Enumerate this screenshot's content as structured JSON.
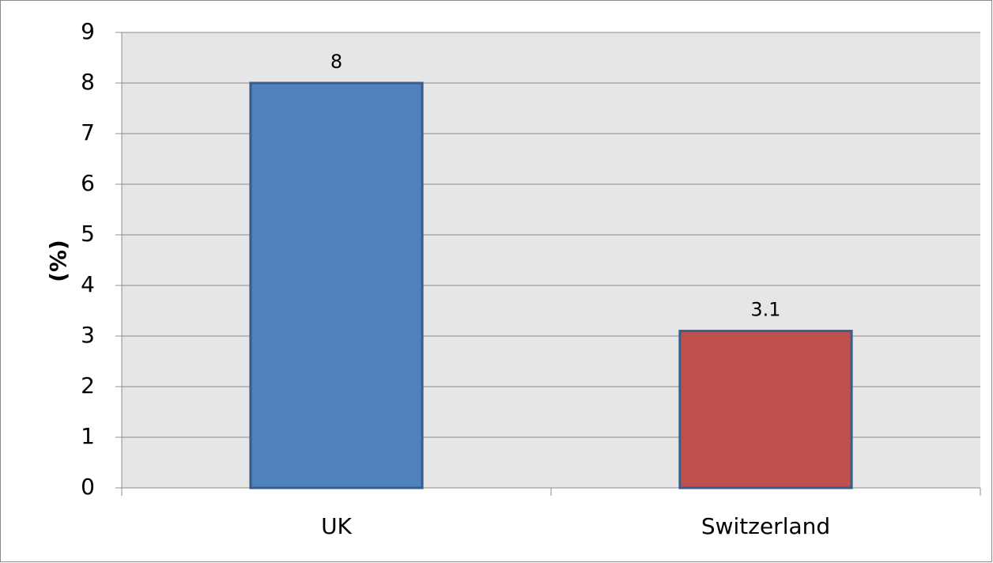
{
  "chart_data": {
    "type": "bar",
    "y_label": "(%)",
    "categories": [
      "UK",
      "Switzerland"
    ],
    "values": [
      8,
      3.1
    ],
    "colors": [
      "#4f81bd",
      "#c0504d"
    ],
    "edge_color": "#385d8a",
    "ylim": [
      0,
      9
    ],
    "yticks": [
      0,
      1,
      2,
      3,
      4,
      5,
      6,
      7,
      8,
      9
    ],
    "grid": true,
    "data_labels": true
  }
}
